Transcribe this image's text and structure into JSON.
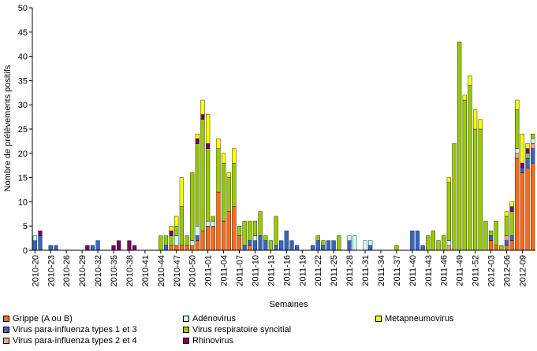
{
  "chart_data": {
    "type": "bar",
    "stacked": true,
    "ylabel": "Nombre de prélèvements positifs",
    "xlabel": "Semaines",
    "ylim": [
      0,
      50
    ],
    "yticks": [
      0,
      5,
      10,
      15,
      20,
      25,
      30,
      35,
      40,
      45,
      50
    ],
    "grid": false,
    "legend_position": "bottom",
    "categories": [
      "2010-20",
      "2010-21",
      "2010-22",
      "2010-23",
      "2010-24",
      "2010-25",
      "2010-26",
      "2010-27",
      "2010-28",
      "2010-29",
      "2010-30",
      "2010-31",
      "2010-32",
      "2010-33",
      "2010-34",
      "2010-35",
      "2010-36",
      "2010-37",
      "2010-38",
      "2010-39",
      "2010-40",
      "2010-41",
      "2010-42",
      "2010-43",
      "2010-44",
      "2010-45",
      "2010-46",
      "2010-47",
      "2010-48",
      "2010-49",
      "2010-50",
      "2010-51",
      "2010-52",
      "2011-01",
      "2011-02",
      "2011-03",
      "2011-04",
      "2011-05",
      "2011-06",
      "2011-07",
      "2011-08",
      "2011-09",
      "2011-10",
      "2011-11",
      "2011-12",
      "2011-13",
      "2011-14",
      "2011-15",
      "2011-16",
      "2011-17",
      "2011-18",
      "2011-19",
      "2011-20",
      "2011-21",
      "2011-22",
      "2011-23",
      "2011-24",
      "2011-25",
      "2011-26",
      "2011-27",
      "2011-28",
      "2011-29",
      "2011-30",
      "2011-31",
      "2011-32",
      "2011-33",
      "2011-34",
      "2011-35",
      "2011-36",
      "2011-37",
      "2011-38",
      "2011-39",
      "2011-40",
      "2011-41",
      "2011-42",
      "2011-43",
      "2011-44",
      "2011-45",
      "2011-46",
      "2011-47",
      "2011-48",
      "2011-49",
      "2011-50",
      "2011-51",
      "2011-52",
      "2012-01",
      "2012-02",
      "2012-03",
      "2012-04",
      "2012-05",
      "2012-06",
      "2012-07",
      "2012-08",
      "2012-09",
      "2012-10",
      "2012-11"
    ],
    "tick_labels": [
      "2010-20",
      "2010-23",
      "2010-26",
      "2010-29",
      "2010-32",
      "2010-35",
      "2010-38",
      "2010-41",
      "2010-44",
      "2010-47",
      "2010-50",
      "2011-01",
      "2011-04",
      "2011-07",
      "2011-10",
      "2011-13",
      "2011-16",
      "2011-19",
      "2011-22",
      "2011-25",
      "2011-28",
      "2011-31",
      "2011-34",
      "2011-37",
      "2011-40",
      "2011-43",
      "2011-46",
      "2011-49",
      "2011-52",
      "2012-03",
      "2012-06",
      "2012-09"
    ],
    "series": [
      {
        "name": "Grippe (A ou B)",
        "color": "#FF6A13",
        "values": [
          0,
          0,
          0,
          0,
          0,
          0,
          0,
          0,
          0,
          0,
          0,
          0,
          0,
          0,
          0,
          0,
          0,
          0,
          0,
          0,
          0,
          0,
          0,
          0,
          0,
          0,
          1,
          1,
          1,
          1,
          1,
          2,
          4,
          5,
          5,
          12,
          6,
          8,
          9,
          3,
          0,
          1,
          0,
          0,
          0,
          0,
          0,
          0,
          0,
          0,
          0,
          0,
          0,
          0,
          0,
          0,
          0,
          0,
          0,
          0,
          0,
          0,
          0,
          0,
          0,
          0,
          0,
          0,
          0,
          0,
          0,
          0,
          0,
          0,
          0,
          0,
          0,
          0,
          0,
          0,
          0,
          0,
          0,
          0,
          0,
          0,
          0,
          2,
          1,
          0,
          1,
          2,
          19,
          16,
          17,
          18
        ]
      },
      {
        "name": "Virus para-influenza types 1 et 3",
        "color": "#3366CC",
        "values": [
          2,
          3,
          0,
          1,
          1,
          0,
          0,
          0,
          0,
          0,
          0,
          1,
          2,
          0,
          0,
          0,
          0,
          0,
          0,
          0,
          0,
          0,
          0,
          0,
          0,
          1,
          0,
          0,
          0,
          0,
          0,
          1,
          0,
          0,
          0,
          0,
          0,
          0,
          0,
          0,
          1,
          1,
          2,
          3,
          2,
          0,
          1,
          2,
          4,
          2,
          1,
          0,
          0,
          1,
          2,
          1,
          2,
          2,
          0,
          0,
          2,
          0,
          0,
          0,
          1,
          0,
          0,
          0,
          0,
          0,
          0,
          0,
          4,
          4,
          1,
          0,
          0,
          0,
          0,
          0,
          0,
          0,
          0,
          0,
          0,
          0,
          0,
          1,
          0,
          0,
          1,
          1,
          0,
          1,
          2,
          3
        ]
      },
      {
        "name": "Virus para-influenza types 2 et 4",
        "color": "#FFA080",
        "values": [
          0,
          0,
          0,
          0,
          0,
          0,
          0,
          0,
          0,
          0,
          0,
          0,
          0,
          0,
          0,
          0,
          0,
          0,
          0,
          0,
          0,
          0,
          0,
          0,
          0,
          0,
          0,
          0,
          0,
          0,
          0,
          0,
          0,
          0,
          0,
          0,
          0,
          0,
          0,
          0,
          0,
          0,
          0,
          0,
          0,
          0,
          0,
          0,
          0,
          0,
          0,
          0,
          0,
          0,
          0,
          0,
          0,
          0,
          0,
          0,
          0,
          0,
          0,
          0,
          0,
          0,
          0,
          0,
          0,
          0,
          0,
          0,
          0,
          0,
          0,
          0,
          0,
          0,
          0,
          1,
          0,
          0,
          0,
          0,
          0,
          0,
          0,
          0,
          0,
          0,
          1,
          0,
          1,
          0,
          0,
          1
        ]
      },
      {
        "name": "Adénovirus",
        "color": "#CCFFFF",
        "values": [
          1,
          0,
          0,
          0,
          0,
          0,
          0,
          0,
          0,
          0,
          0,
          0,
          0,
          0,
          0,
          0,
          0,
          0,
          0,
          0,
          0,
          0,
          0,
          0,
          0,
          0,
          0,
          2,
          0,
          0,
          1,
          2,
          0,
          1,
          1,
          0,
          0,
          0,
          0,
          0,
          0,
          0,
          1,
          0,
          0,
          0,
          0,
          0,
          0,
          0,
          0,
          0,
          0,
          0,
          0,
          0,
          0,
          0,
          0,
          0,
          1,
          3,
          0,
          2,
          1,
          0,
          0,
          0,
          0,
          0,
          0,
          0,
          0,
          0,
          0,
          0,
          0,
          0,
          0,
          1,
          0,
          0,
          0,
          0,
          0,
          0,
          0,
          0,
          0,
          0,
          0,
          0,
          1,
          0,
          0,
          1
        ]
      },
      {
        "name": "Virus respiratoire syncitial",
        "color": "#99CC00",
        "values": [
          0,
          0,
          0,
          0,
          0,
          0,
          0,
          0,
          0,
          0,
          0,
          0,
          0,
          0,
          0,
          0,
          0,
          0,
          0,
          0,
          0,
          0,
          0,
          0,
          3,
          2,
          2,
          2,
          8,
          2,
          14,
          17,
          23,
          15,
          1,
          9,
          12,
          7,
          9,
          2,
          5,
          4,
          3,
          5,
          1,
          2,
          6,
          0,
          0,
          0,
          0,
          0,
          0,
          0,
          1,
          1,
          0,
          0,
          3,
          0,
          0,
          0,
          0,
          0,
          0,
          0,
          0,
          0,
          0,
          1,
          0,
          0,
          0,
          0,
          0,
          3,
          4,
          2,
          3,
          12,
          22,
          43,
          31,
          34,
          25,
          25,
          6,
          1,
          5,
          1,
          4,
          5,
          8,
          0,
          1,
          1
        ]
      },
      {
        "name": "Rhinovirus",
        "color": "#800060",
        "values": [
          0,
          1,
          0,
          0,
          0,
          0,
          0,
          0,
          0,
          0,
          1,
          0,
          0,
          0,
          0,
          1,
          2,
          0,
          2,
          1,
          0,
          0,
          0,
          0,
          0,
          0,
          1,
          0,
          0,
          0,
          0,
          1,
          1,
          1,
          0,
          0,
          0,
          0,
          0,
          0,
          0,
          0,
          0,
          0,
          0,
          0,
          0,
          0,
          0,
          0,
          0,
          0,
          0,
          0,
          0,
          0,
          0,
          0,
          0,
          0,
          0,
          0,
          0,
          0,
          0,
          0,
          0,
          0,
          0,
          0,
          0,
          0,
          0,
          0,
          0,
          0,
          0,
          0,
          0,
          0,
          0,
          0,
          0,
          0,
          0,
          0,
          0,
          0,
          0,
          0,
          0,
          1,
          0,
          1,
          1,
          0
        ]
      },
      {
        "name": "Metapneumovirus",
        "color": "#FFFF00",
        "values": [
          0,
          0,
          0,
          0,
          0,
          0,
          0,
          0,
          0,
          0,
          0,
          0,
          0,
          0,
          0,
          0,
          0,
          0,
          0,
          0,
          0,
          0,
          0,
          0,
          0,
          0,
          1,
          2,
          6,
          0,
          0,
          1,
          3,
          6,
          0,
          2,
          2,
          1,
          3,
          0,
          0,
          0,
          0,
          0,
          0,
          0,
          0,
          0,
          0,
          0,
          0,
          0,
          0,
          0,
          0,
          0,
          0,
          0,
          0,
          0,
          0,
          0,
          0,
          0,
          0,
          0,
          0,
          0,
          0,
          0,
          0,
          0,
          0,
          0,
          0,
          0,
          0,
          0,
          0,
          1,
          0,
          0,
          1,
          2,
          4,
          2,
          0,
          0,
          0,
          0,
          1,
          1,
          2,
          6,
          1,
          0
        ]
      }
    ],
    "legend_order": [
      "Grippe (A ou B)",
      "Virus para-influenza types 1 et 3",
      "Virus para-influenza types 2 et 4",
      "Adénovirus",
      "Virus respiratoire syncitial",
      "Rhinovirus",
      "Metapneumovirus"
    ]
  }
}
